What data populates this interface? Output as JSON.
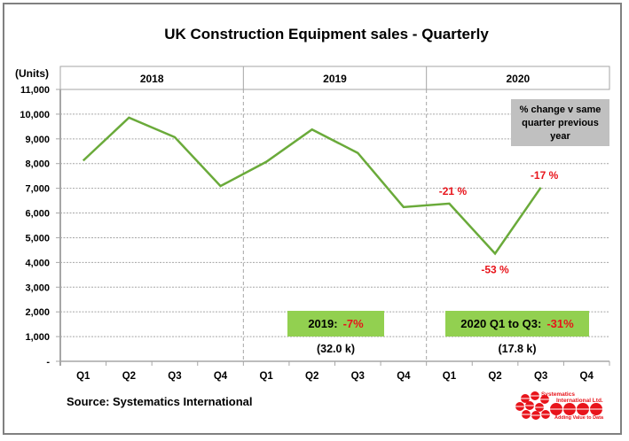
{
  "chart_data": {
    "type": "line",
    "title": "UK Construction  Equipment sales - Quarterly",
    "ylabel": "(Units)",
    "xlabel": "",
    "ylim": [
      0,
      11000
    ],
    "ytick_step": 1000,
    "yticks": [
      "-",
      "1,000",
      "2,000",
      "3,000",
      "4,000",
      "5,000",
      "6,000",
      "7,000",
      "8,000",
      "9,000",
      "10,000",
      "11,000"
    ],
    "grid": true,
    "year_groups": [
      {
        "label": "2018",
        "quarters": 4
      },
      {
        "label": "2019",
        "quarters": 4
      },
      {
        "label": "2020",
        "quarters": 4
      }
    ],
    "categories": [
      "Q1",
      "Q2",
      "Q3",
      "Q4",
      "Q1",
      "Q2",
      "Q3",
      "Q4",
      "Q1",
      "Q2",
      "Q3",
      "Q4"
    ],
    "series": [
      {
        "name": "UK construction equipment sales (units)",
        "color": "#6aaa3a",
        "values": [
          8120,
          9860,
          9070,
          7090,
          8070,
          9380,
          8430,
          6240,
          6380,
          4360,
          7030,
          null
        ]
      }
    ],
    "point_annotations": [
      {
        "index": 8,
        "label": "-21 %",
        "position": "above"
      },
      {
        "index": 9,
        "label": "-53 %",
        "position": "below"
      },
      {
        "index": 10,
        "label": "-17 %",
        "position": "above"
      }
    ],
    "legend_note": {
      "lines": [
        "% change v same",
        "quarter previous",
        "year"
      ],
      "position": "top-right",
      "color": "#c0c0c0"
    },
    "summary_boxes": [
      {
        "label": "2019:",
        "change": "-7%",
        "total": "(32.0 k)",
        "year_index": 1
      },
      {
        "label": "2020  Q1 to Q3:",
        "change": "-31%",
        "total": "(17.8 k)",
        "year_index": 2
      }
    ],
    "source": "Source: Systematics International"
  },
  "logo": {
    "line1": "Systematics",
    "line2": "International Ltd.",
    "tagline": "Adding Value to Data",
    "color": "#e8141b"
  },
  "colors": {
    "line": "#6aaa3a",
    "annotation": "#e8141b",
    "summary_box": "#92d050",
    "note_box": "#c0c0c0",
    "grid": "#a6a6a6"
  }
}
